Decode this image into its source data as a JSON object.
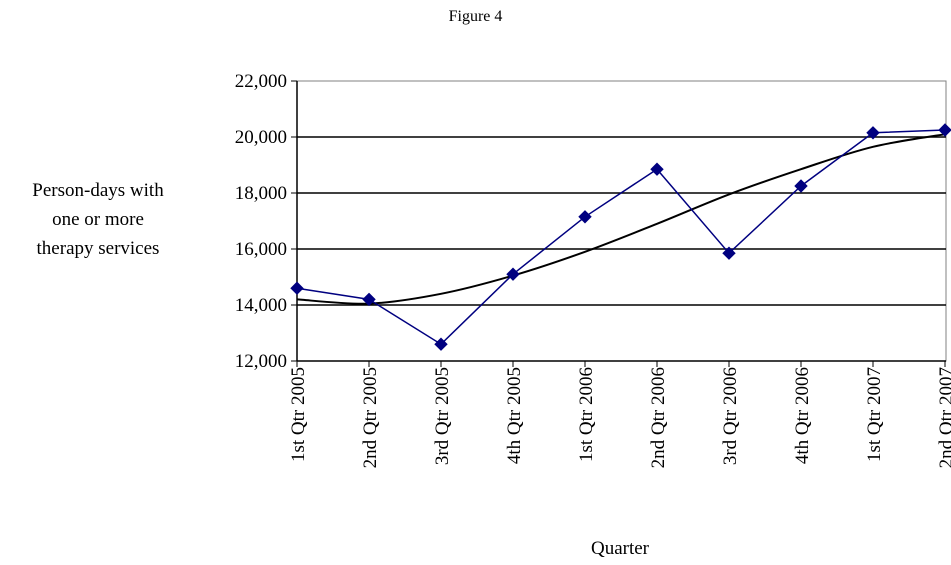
{
  "chart_data": {
    "type": "line",
    "title": "Figure 4",
    "xlabel": "Quarter",
    "ylabel": [
      "Person-days with",
      "one or more",
      "therapy services"
    ],
    "categories": [
      "1st Qtr 2005",
      "2nd Qtr 2005",
      "3rd Qtr 2005",
      "4th Qtr 2005",
      "1st Qtr 2006",
      "2nd Qtr 2006",
      "3rd Qtr 2006",
      "4th Qtr 2006",
      "1st Qtr 2007",
      "2nd Qtr 2007"
    ],
    "yticks": [
      "12,000",
      "14,000",
      "16,000",
      "18,000",
      "20,000",
      "22,000"
    ],
    "ylim": [
      12000,
      22000
    ],
    "grid": true,
    "series": [
      {
        "values": [
          14600,
          14200,
          12600,
          15100,
          17150,
          18850,
          15850,
          18250,
          20150,
          20250
        ],
        "color": "#000080",
        "marker": "diamond"
      },
      {
        "values": [
          14200,
          14050,
          14400,
          15050,
          15900,
          16900,
          17950,
          18850,
          19650,
          20100
        ],
        "color": "#000000",
        "style": "smooth-trend"
      }
    ]
  }
}
